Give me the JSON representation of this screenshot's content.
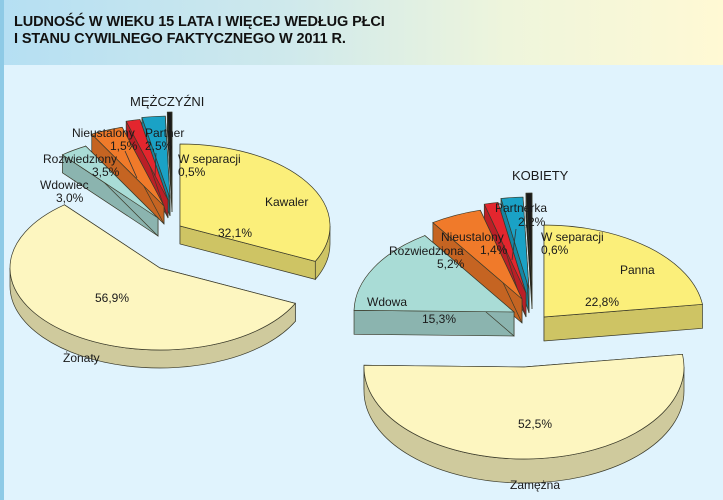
{
  "header": {
    "title_line1": "LUDNOŚĆ W WIEKU 15 LATA I WIĘCEJ WEDŁUG PŁCI",
    "title_line2": "I STANU CYWILNEGO FAKTYCZNEGO W 2011 R."
  },
  "colors": {
    "background": "#e0f3fd",
    "header_gradient_start": "#b5dff3",
    "header_gradient_end": "#fff9d4",
    "left_border": "#8ecae6"
  },
  "chart_data": [
    {
      "type": "pie",
      "title": "MĘŻCZYŹNI",
      "categories": [
        "Kawaler",
        "Żonaty",
        "Wdowiec",
        "Rozwiedziony",
        "Nieustalony",
        "Partner",
        "W separacji"
      ],
      "values": [
        32.1,
        56.9,
        3.0,
        3.5,
        1.5,
        2.5,
        0.5
      ],
      "labels": [
        "32,1%",
        "56,9%",
        "3,0%",
        "3,5%",
        "1,5%",
        "2,5%",
        "0,5%"
      ],
      "colors": [
        "#fbef7a",
        "#fdf6c0",
        "#a9dcd6",
        "#f07a2a",
        "#e3262e",
        "#1aa2c6",
        "#1a1a1a"
      ],
      "unit": "%"
    },
    {
      "type": "pie",
      "title": "KOBIETY",
      "categories": [
        "Panna",
        "Zamężna",
        "Wdowa",
        "Rozwiedziona",
        "Nieustalony",
        "Partnerka",
        "W separacji"
      ],
      "values": [
        22.8,
        52.5,
        15.3,
        5.2,
        1.4,
        2.2,
        0.6
      ],
      "labels": [
        "22,8%",
        "52,5%",
        "15,3%",
        "5,2%",
        "1,4%",
        "2,2%",
        "0,6%"
      ],
      "colors": [
        "#fbef7a",
        "#fdf6c0",
        "#a9dcd6",
        "#f07a2a",
        "#e3262e",
        "#1aa2c6",
        "#1a1a1a"
      ],
      "unit": "%"
    }
  ],
  "men": {
    "title": "MĘŻCZYŹNI",
    "kawaler": {
      "name": "Kawaler",
      "value": "32,1%"
    },
    "zonaty": {
      "name": "Żonaty",
      "value": "56,9%"
    },
    "wdowiec": {
      "name": "Wdowiec",
      "value": "3,0%"
    },
    "rozwiedziony": {
      "name": "Rozwiedziony",
      "value": "3,5%"
    },
    "nieustalony": {
      "name": "Nieustalony",
      "value": "1,5%"
    },
    "partner": {
      "name": "Partner",
      "value": "2,5%"
    },
    "separacja": {
      "name": "W separacji",
      "value": "0,5%"
    }
  },
  "women": {
    "title": "KOBIETY",
    "panna": {
      "name": "Panna",
      "value": "22,8%"
    },
    "zamezna": {
      "name": "Zamężna",
      "value": "52,5%"
    },
    "wdowa": {
      "name": "Wdowa",
      "value": "15,3%"
    },
    "rozwiedziona": {
      "name": "Rozwiedziona",
      "value": "5,2%"
    },
    "nieustalony": {
      "name": "Nieustalony",
      "value": "1,4%"
    },
    "partnerka": {
      "name": "Partnerka",
      "value": "2,2%"
    },
    "separacja": {
      "name": "W separacji",
      "value": "0,6%"
    }
  }
}
